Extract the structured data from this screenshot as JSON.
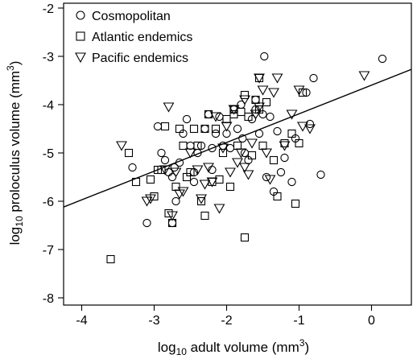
{
  "chart_data": {
    "type": "scatter",
    "title": "",
    "xlabel": {
      "pre": "log",
      "sub": "10",
      "main": " adult volume (mm",
      "sup": "3",
      "post": ")"
    },
    "ylabel": {
      "pre": "log",
      "sub": "10",
      "main": " proloculus volume (mm",
      "sup": "3",
      "post": ")"
    },
    "xlim": [
      -4.25,
      0.55
    ],
    "ylim": [
      -8.15,
      -1.9
    ],
    "xticks": [
      -4,
      -3,
      -2,
      -1,
      0
    ],
    "xtick_labels": [
      "-4",
      "-3",
      "-2",
      "-1",
      "0"
    ],
    "yticks": [
      -8,
      -7,
      -6,
      -5,
      -4,
      -3,
      -2
    ],
    "ytick_labels": [
      "-8",
      "-7",
      "-6",
      "-5",
      "-4",
      "-3",
      "-2"
    ],
    "grid": false,
    "legend_position": "top-left",
    "regression_line": {
      "x": [
        -4.25,
        0.55
      ],
      "y": [
        -6.12,
        -3.27
      ]
    },
    "series": [
      {
        "name": "Cosmopolitan",
        "marker": "circle",
        "points": [
          [
            -3.3,
            -5.3
          ],
          [
            -3.1,
            -6.45
          ],
          [
            -2.95,
            -4.45
          ],
          [
            -2.9,
            -5.0
          ],
          [
            -2.85,
            -5.15
          ],
          [
            -2.8,
            -5.4
          ],
          [
            -2.75,
            -5.5
          ],
          [
            -2.7,
            -6.0
          ],
          [
            -2.72,
            -5.3
          ],
          [
            -2.65,
            -5.2
          ],
          [
            -2.6,
            -4.6
          ],
          [
            -2.55,
            -4.3
          ],
          [
            -2.5,
            -4.85
          ],
          [
            -2.45,
            -5.4
          ],
          [
            -2.4,
            -5.0
          ],
          [
            -2.35,
            -4.85
          ],
          [
            -2.3,
            -4.5
          ],
          [
            -2.25,
            -4.2
          ],
          [
            -2.2,
            -4.9
          ],
          [
            -2.15,
            -4.6
          ],
          [
            -2.1,
            -4.25
          ],
          [
            -2.05,
            -4.85
          ],
          [
            -2.0,
            -4.6
          ],
          [
            -1.95,
            -4.9
          ],
          [
            -1.9,
            -4.1
          ],
          [
            -1.85,
            -4.5
          ],
          [
            -1.8,
            -4.0
          ],
          [
            -1.78,
            -4.7
          ],
          [
            -1.75,
            -5.0
          ],
          [
            -1.7,
            -5.15
          ],
          [
            -1.65,
            -4.3
          ],
          [
            -1.6,
            -4.1
          ],
          [
            -1.55,
            -4.6
          ],
          [
            -1.5,
            -4.2
          ],
          [
            -1.48,
            -3.0
          ],
          [
            -1.45,
            -5.5
          ],
          [
            -1.4,
            -4.25
          ],
          [
            -1.35,
            -5.8
          ],
          [
            -1.3,
            -4.55
          ],
          [
            -1.25,
            -5.4
          ],
          [
            -1.2,
            -5.1
          ],
          [
            -1.1,
            -5.6
          ],
          [
            -1.05,
            -4.7
          ],
          [
            -0.9,
            -3.75
          ],
          [
            -0.85,
            -4.4
          ],
          [
            -0.8,
            -3.45
          ],
          [
            -0.7,
            -5.45
          ],
          [
            0.15,
            -3.05
          ],
          [
            -2.2,
            -5.35
          ],
          [
            -2.45,
            -5.6
          ],
          [
            -2.75,
            -6.45
          ],
          [
            -1.6,
            -3.9
          ]
        ]
      },
      {
        "name": "Atlantic endemics",
        "marker": "square",
        "points": [
          [
            -3.6,
            -7.2
          ],
          [
            -3.35,
            -5.0
          ],
          [
            -3.25,
            -5.6
          ],
          [
            -3.05,
            -5.55
          ],
          [
            -3.0,
            -5.9
          ],
          [
            -2.9,
            -5.35
          ],
          [
            -2.85,
            -4.45
          ],
          [
            -2.8,
            -6.25
          ],
          [
            -2.75,
            -6.45
          ],
          [
            -2.7,
            -5.7
          ],
          [
            -2.65,
            -4.5
          ],
          [
            -2.55,
            -5.5
          ],
          [
            -2.5,
            -5.4
          ],
          [
            -2.45,
            -4.5
          ],
          [
            -2.4,
            -4.85
          ],
          [
            -2.35,
            -6.0
          ],
          [
            -2.3,
            -4.5
          ],
          [
            -2.25,
            -4.2
          ],
          [
            -2.2,
            -5.6
          ],
          [
            -2.15,
            -4.5
          ],
          [
            -2.1,
            -5.55
          ],
          [
            -2.05,
            -5.0
          ],
          [
            -2.0,
            -4.3
          ],
          [
            -1.95,
            -5.7
          ],
          [
            -1.9,
            -4.2
          ],
          [
            -1.85,
            -4.85
          ],
          [
            -1.8,
            -4.15
          ],
          [
            -1.75,
            -6.75
          ],
          [
            -1.7,
            -4.25
          ],
          [
            -1.65,
            -5.05
          ],
          [
            -1.6,
            -3.9
          ],
          [
            -1.55,
            -4.1
          ],
          [
            -1.5,
            -4.85
          ],
          [
            -1.45,
            -3.95
          ],
          [
            -1.35,
            -5.15
          ],
          [
            -1.3,
            -5.9
          ],
          [
            -1.2,
            -4.8
          ],
          [
            -1.1,
            -4.6
          ],
          [
            -1.05,
            -6.05
          ],
          [
            -1.0,
            -4.8
          ],
          [
            -0.95,
            -3.75
          ],
          [
            -2.95,
            -5.35
          ],
          [
            -1.75,
            -3.8
          ],
          [
            -2.3,
            -6.3
          ],
          [
            -1.9,
            -4.1
          ],
          [
            -1.55,
            -3.45
          ],
          [
            -2.6,
            -4.85
          ]
        ]
      },
      {
        "name": "Pacific endemics",
        "marker": "triangle",
        "points": [
          [
            -3.45,
            -4.85
          ],
          [
            -3.1,
            -6.0
          ],
          [
            -3.05,
            -5.95
          ],
          [
            -2.8,
            -4.05
          ],
          [
            -2.75,
            -6.3
          ],
          [
            -2.7,
            -5.4
          ],
          [
            -2.65,
            -5.85
          ],
          [
            -2.6,
            -5.8
          ],
          [
            -2.5,
            -5.0
          ],
          [
            -2.4,
            -5.35
          ],
          [
            -2.35,
            -5.95
          ],
          [
            -2.3,
            -5.65
          ],
          [
            -2.2,
            -5.6
          ],
          [
            -2.15,
            -4.25
          ],
          [
            -2.1,
            -6.15
          ],
          [
            -2.05,
            -4.9
          ],
          [
            -2.0,
            -4.45
          ],
          [
            -1.95,
            -5.4
          ],
          [
            -1.9,
            -4.1
          ],
          [
            -1.85,
            -5.2
          ],
          [
            -1.8,
            -5.0
          ],
          [
            -1.75,
            -3.9
          ],
          [
            -1.7,
            -5.45
          ],
          [
            -1.65,
            -4.8
          ],
          [
            -1.6,
            -4.2
          ],
          [
            -1.55,
            -4.05
          ],
          [
            -1.5,
            -3.7
          ],
          [
            -1.45,
            -5.0
          ],
          [
            -1.4,
            -5.55
          ],
          [
            -1.35,
            -3.75
          ],
          [
            -1.3,
            -3.45
          ],
          [
            -1.2,
            -4.85
          ],
          [
            -1.1,
            -4.2
          ],
          [
            -1.0,
            -3.7
          ],
          [
            -0.95,
            -4.45
          ],
          [
            -0.85,
            -4.5
          ],
          [
            -0.1,
            -3.4
          ],
          [
            -2.85,
            -5.35
          ],
          [
            -1.75,
            -5.3
          ],
          [
            -2.25,
            -5.3
          ],
          [
            -1.55,
            -3.45
          ]
        ]
      }
    ]
  }
}
